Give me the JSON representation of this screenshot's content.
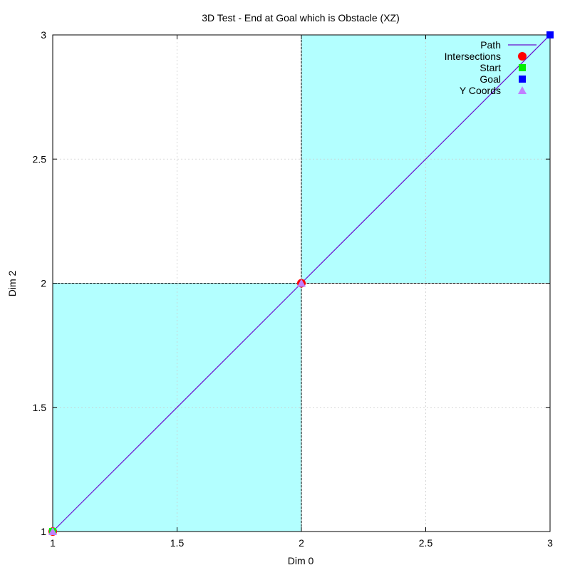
{
  "chart_data": {
    "type": "line",
    "title": "3D Test - End at Goal which is Obstacle (XZ)",
    "xlabel": "Dim 0",
    "ylabel": "Dim 2",
    "xlim": [
      1,
      3
    ],
    "ylim": [
      1,
      3
    ],
    "grid": true,
    "legend_position": "top-right",
    "x_ticks": [
      {
        "value": 1,
        "label": "1"
      },
      {
        "value": 1.5,
        "label": "1.5"
      },
      {
        "value": 2,
        "label": "2"
      },
      {
        "value": 2.5,
        "label": "2.5"
      },
      {
        "value": 3,
        "label": "3"
      }
    ],
    "y_ticks": [
      {
        "value": 1,
        "label": "1"
      },
      {
        "value": 1.5,
        "label": "1.5"
      },
      {
        "value": 2,
        "label": "2"
      },
      {
        "value": 2.5,
        "label": "2.5"
      },
      {
        "value": 3,
        "label": "3"
      }
    ],
    "obstacles": [
      {
        "x": [
          1,
          2
        ],
        "y": [
          1,
          2
        ],
        "color": "#b3ffff"
      },
      {
        "x": [
          2,
          3
        ],
        "y": [
          2,
          3
        ],
        "color": "#b3ffff"
      }
    ],
    "series": [
      {
        "name": "Path",
        "kind": "line",
        "color": "#6a0dce",
        "points": [
          [
            1,
            1
          ],
          [
            2,
            2
          ],
          [
            3,
            3
          ]
        ]
      },
      {
        "name": "Intersections",
        "kind": "circle",
        "color": "#ff0000",
        "points": [
          [
            1,
            1
          ],
          [
            2,
            2
          ]
        ]
      },
      {
        "name": "Start",
        "kind": "square",
        "color": "#00ee00",
        "points": [
          [
            1,
            1
          ]
        ]
      },
      {
        "name": "Goal",
        "kind": "square",
        "color": "#0000ff",
        "points": [
          [
            3,
            3
          ]
        ]
      },
      {
        "name": "Y Coords",
        "kind": "triangle",
        "color": "#c080ff",
        "points": [
          [
            1,
            1
          ],
          [
            2,
            2
          ]
        ]
      }
    ]
  }
}
